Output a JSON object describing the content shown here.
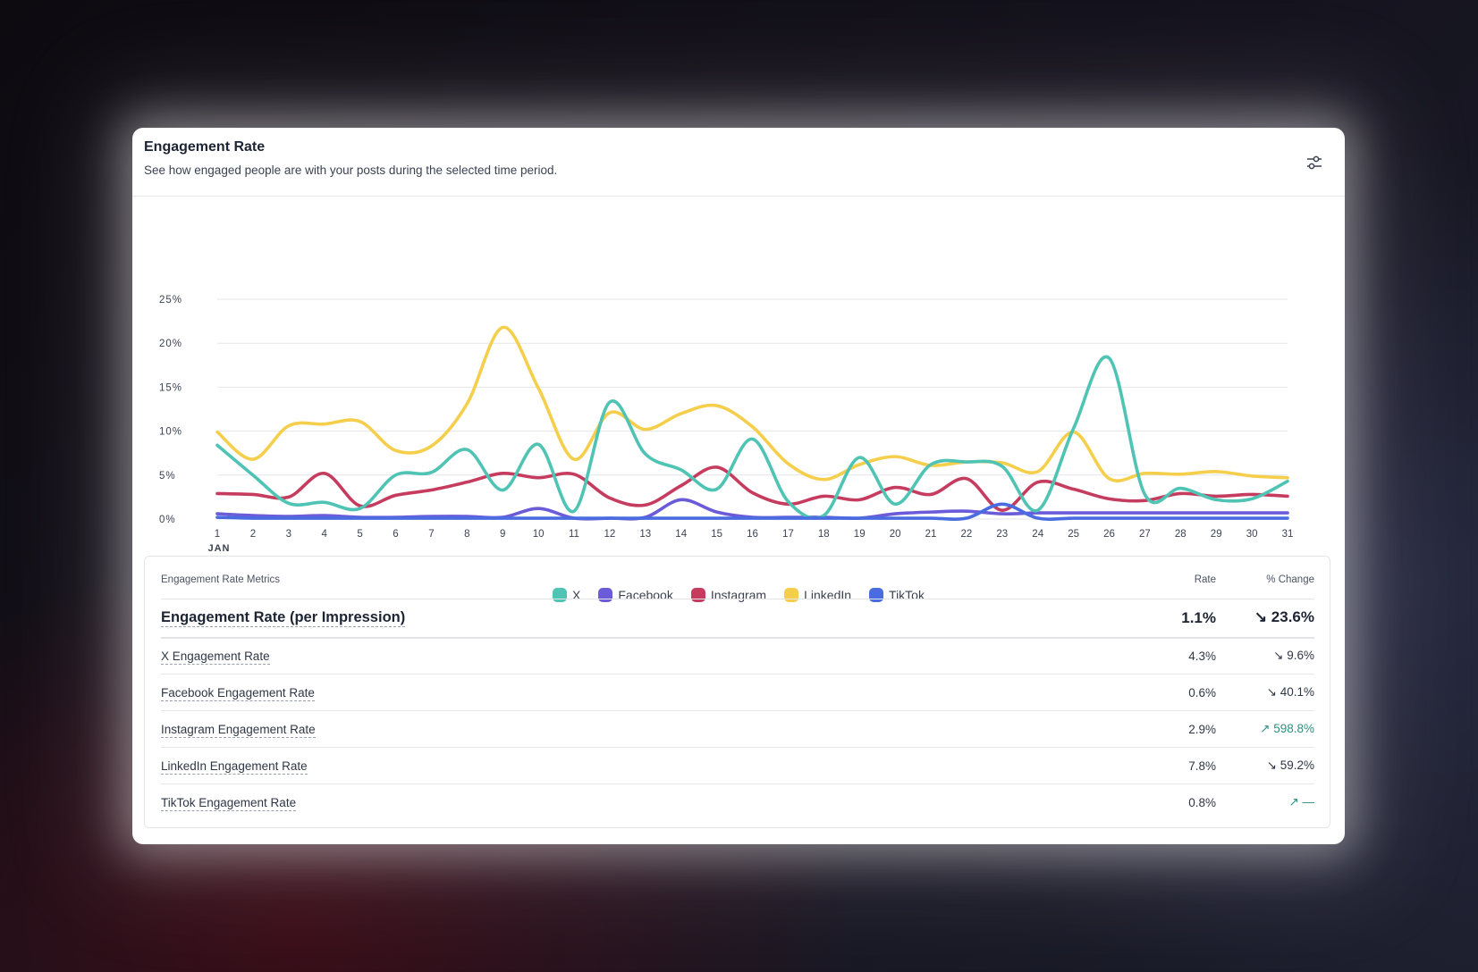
{
  "card": {
    "title": "Engagement Rate",
    "subtitle": "See how engaged people are with your posts during the selected time period.",
    "filter_icon": "sliders-icon"
  },
  "chart_data": {
    "type": "line",
    "title": "Engagement Rate",
    "x": [
      "1",
      "2",
      "3",
      "4",
      "5",
      "6",
      "7",
      "8",
      "9",
      "10",
      "11",
      "12",
      "13",
      "14",
      "15",
      "16",
      "17",
      "18",
      "19",
      "20",
      "21",
      "22",
      "23",
      "24",
      "25",
      "26",
      "27",
      "28",
      "29",
      "30",
      "31"
    ],
    "x_sublabel": "JAN",
    "y_ticks": [
      "0%",
      "5%",
      "10%",
      "15%",
      "20%",
      "25%"
    ],
    "ylim": [
      0,
      25
    ],
    "grid": true,
    "legend_position": "bottom-center",
    "series": [
      {
        "name": "X",
        "color": "#4fc3b4",
        "values": [
          8.4,
          5.0,
          1.8,
          1.9,
          1.2,
          5.0,
          5.3,
          7.9,
          3.3,
          8.5,
          0.9,
          13.3,
          7.4,
          5.6,
          3.4,
          9.1,
          2.0,
          0.4,
          7.0,
          1.7,
          6.2,
          6.5,
          6.0,
          1.0,
          10.3,
          18.3,
          2.8,
          3.5,
          2.2,
          2.3,
          4.3
        ]
      },
      {
        "name": "Facebook",
        "color": "#6a5cd8",
        "values": [
          0.6,
          0.4,
          0.3,
          0.4,
          0.2,
          0.2,
          0.3,
          0.3,
          0.2,
          1.2,
          0.1,
          0.1,
          0.2,
          2.2,
          0.8,
          0.2,
          0.2,
          0.2,
          0.1,
          0.6,
          0.8,
          0.9,
          0.6,
          0.7,
          0.7,
          0.7,
          0.7,
          0.7,
          0.7,
          0.7,
          0.7
        ]
      },
      {
        "name": "Instagram",
        "color": "#c63c5f",
        "values": [
          2.9,
          2.8,
          2.5,
          5.2,
          1.5,
          2.7,
          3.3,
          4.2,
          5.2,
          4.7,
          5.1,
          2.4,
          1.6,
          3.8,
          5.9,
          3.0,
          1.7,
          2.6,
          2.2,
          3.6,
          2.8,
          4.6,
          1.0,
          4.2,
          3.4,
          2.3,
          2.1,
          2.9,
          2.6,
          2.8,
          2.6
        ]
      },
      {
        "name": "LinkedIn",
        "color": "#f5cf4b",
        "values": [
          9.9,
          6.8,
          10.6,
          10.8,
          11.1,
          7.8,
          8.3,
          13.1,
          21.8,
          14.9,
          6.8,
          12.1,
          10.2,
          12.0,
          12.9,
          10.5,
          6.3,
          4.5,
          6.2,
          7.1,
          6.1,
          6.5,
          6.4,
          5.4,
          9.9,
          4.6,
          5.2,
          5.1,
          5.4,
          4.9,
          4.7
        ]
      },
      {
        "name": "TikTok",
        "color": "#4a6ce0",
        "values": [
          0.2,
          0.1,
          0.1,
          0.1,
          0.1,
          0.1,
          0.1,
          0.1,
          0.1,
          0.1,
          0.1,
          0.1,
          0.1,
          0.1,
          0.1,
          0.1,
          0.1,
          0.1,
          0.1,
          0.1,
          0.1,
          0.1,
          1.7,
          0.1,
          0.1,
          0.1,
          0.1,
          0.1,
          0.1,
          0.1,
          0.1
        ]
      }
    ]
  },
  "metrics": {
    "header": {
      "metric": "Engagement Rate Metrics",
      "rate": "Rate",
      "change": "% Change"
    },
    "primary": {
      "label": "Engagement Rate (per Impression)",
      "rate": "1.1%",
      "change": "↘ 23.6%"
    },
    "rows": [
      {
        "label": "X Engagement Rate",
        "rate": "4.3%",
        "change": "↘ 9.6%",
        "trend": "down"
      },
      {
        "label": "Facebook Engagement Rate",
        "rate": "0.6%",
        "change": "↘ 40.1%",
        "trend": "down"
      },
      {
        "label": "Instagram Engagement Rate",
        "rate": "2.9%",
        "change": "↗ 598.8%",
        "trend": "up"
      },
      {
        "label": "LinkedIn Engagement Rate",
        "rate": "7.8%",
        "change": "↘ 59.2%",
        "trend": "down"
      },
      {
        "label": "TikTok Engagement Rate",
        "rate": "0.8%",
        "change": "↗ —",
        "trend": "up"
      }
    ]
  }
}
